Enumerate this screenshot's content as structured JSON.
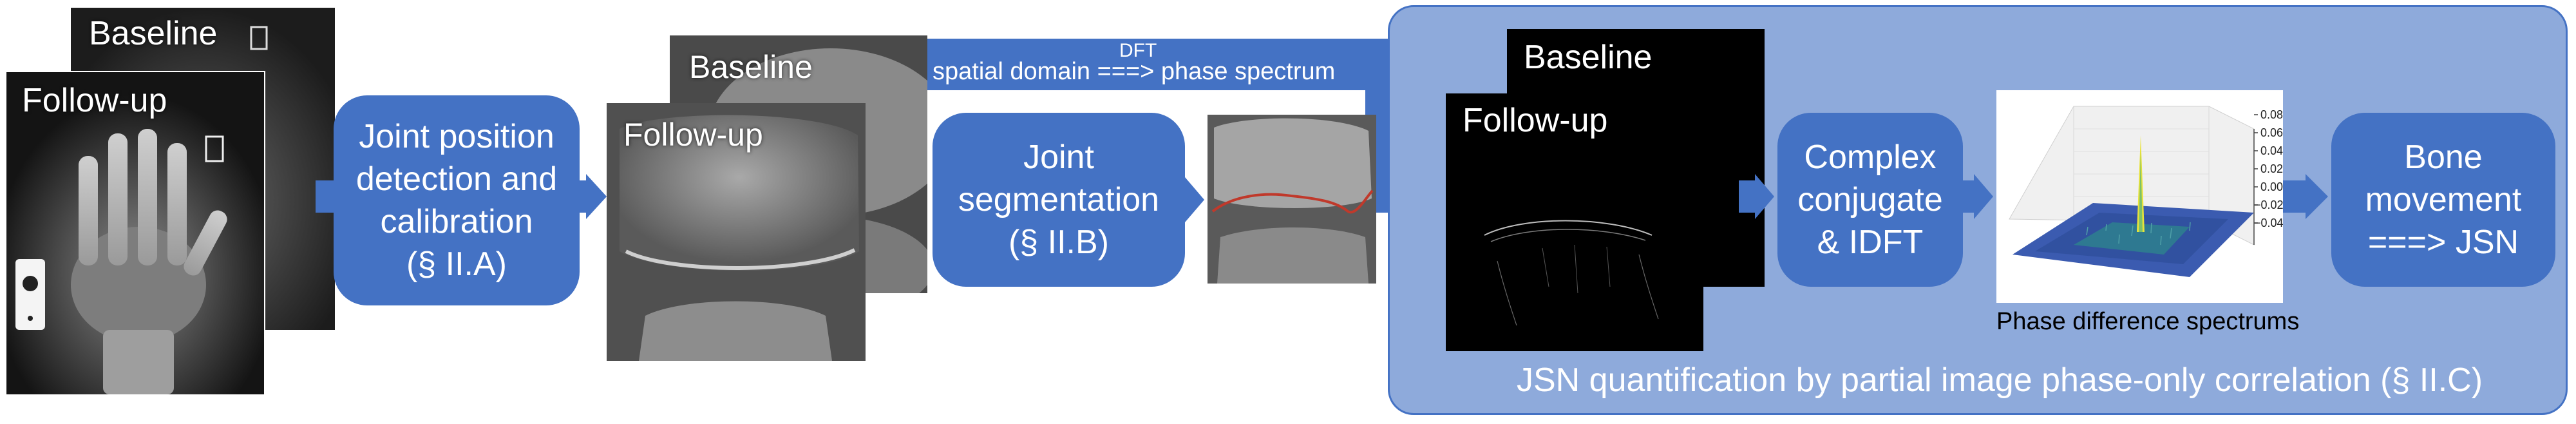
{
  "stage1": {
    "baseline": "Baseline",
    "followup": "Follow-up"
  },
  "box1": {
    "line1": "Joint position",
    "line2": "detection and",
    "line3": "calibration",
    "line4": "(§ II.A)"
  },
  "stage2": {
    "baseline": "Baseline",
    "followup": "Follow-up"
  },
  "banner": {
    "dft": "DFT",
    "text": "spatial domain ===> phase spectrum"
  },
  "box2": {
    "line1": "Joint",
    "line2": "segmentation",
    "line3": "(§ II.B)"
  },
  "stage3": {
    "baseline": "Baseline",
    "followup": "Follow-up"
  },
  "box3": {
    "line1": "Complex",
    "line2": "conjugate",
    "line3": "& IDFT"
  },
  "plot": {
    "caption": "Phase difference spectrums",
    "zticks": [
      "0.08",
      "0.06",
      "0.04",
      "0.02",
      "0.00",
      "−0.02",
      "−0.04"
    ]
  },
  "box4": {
    "line1": "Bone",
    "line2": "movement",
    "line3": "===> JSN"
  },
  "panel": {
    "caption": "JSN quantification by partial image phase-only correlation (§ II.C)"
  },
  "colors": {
    "box": "#4472c4",
    "panel": "#8eaadb",
    "segmentation_line": "#c0392b",
    "surface_peak": "#e8e33a"
  }
}
